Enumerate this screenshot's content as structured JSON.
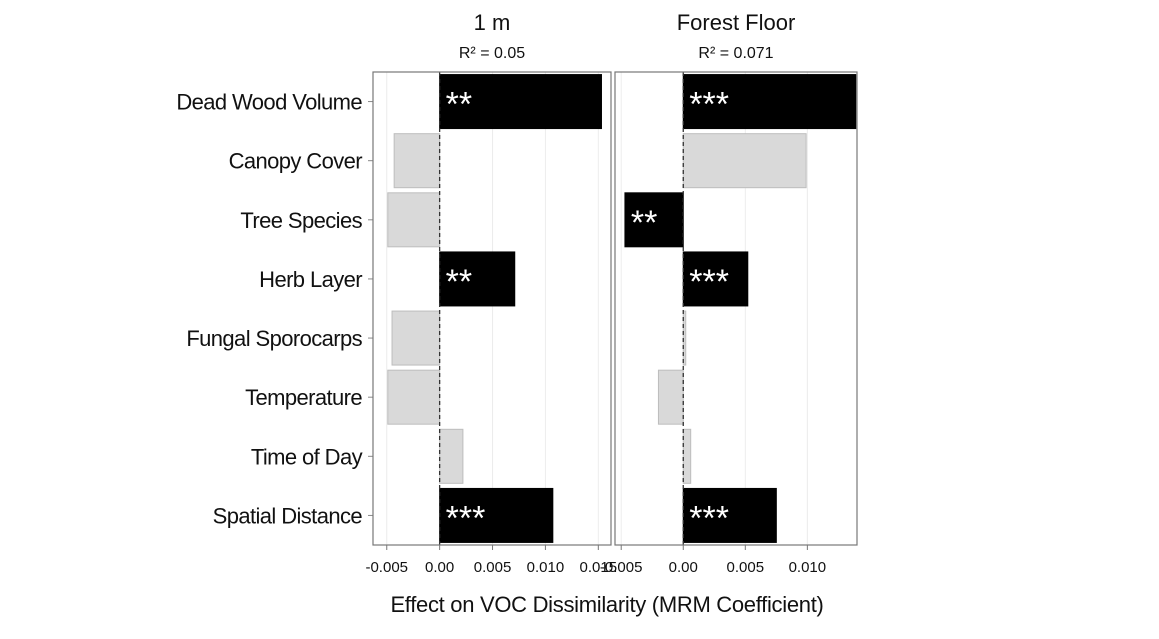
{
  "chart_data": {
    "type": "bar",
    "orientation": "horizontal",
    "xlabel": "Effect on VOC Dissimilarity (MRM Coefficient)",
    "categories": [
      "Dead Wood Volume",
      "Canopy Cover",
      "Tree Species",
      "Herb Layer",
      "Fungal Sporocarps",
      "Temperature",
      "Time of Day",
      "Spatial Distance"
    ],
    "colors": {
      "significant": "#000000",
      "nonsignificant": "#d9d9d9"
    },
    "panels": [
      {
        "title": "1 m",
        "subtitle": "R² = 0.05",
        "xlim": [
          -0.0063,
          0.0162
        ],
        "ticks": [
          -0.005,
          0.0,
          0.005,
          0.01,
          0.015
        ],
        "tick_labels": [
          "-0.005",
          "0.00",
          "0.005",
          "0.010",
          "0.015"
        ],
        "values": [
          0.0153,
          -0.0043,
          -0.0049,
          0.0071,
          -0.0045,
          -0.0049,
          0.0022,
          0.0107
        ],
        "significance": [
          "**",
          "",
          "",
          "**",
          "",
          "",
          "",
          "***"
        ]
      },
      {
        "title": "Forest Floor",
        "subtitle": "R² = 0.071",
        "xlim": [
          -0.0055,
          0.014
        ],
        "ticks": [
          -0.005,
          0.0,
          0.005,
          0.01
        ],
        "tick_labels": [
          "-0.005",
          "0.00",
          "0.005",
          "0.010"
        ],
        "values": [
          0.0139,
          0.0099,
          -0.0047,
          0.0052,
          0.0002,
          -0.002,
          0.0006,
          0.0075
        ],
        "significance": [
          "***",
          "",
          "**",
          "***",
          "",
          "",
          "",
          "***"
        ]
      }
    ]
  }
}
